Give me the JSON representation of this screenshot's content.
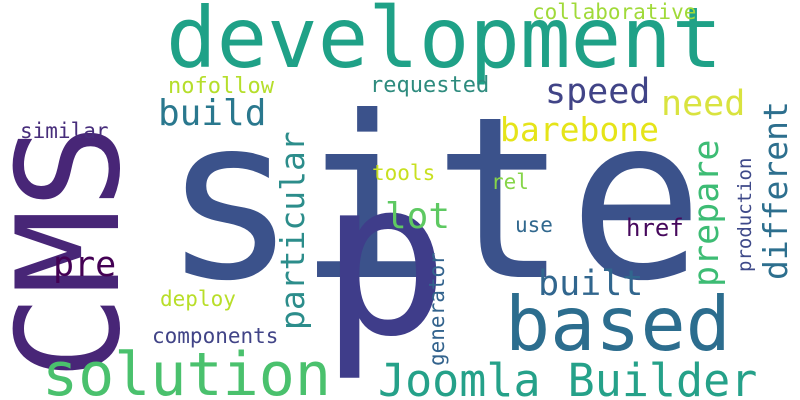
{
  "cloud": {
    "words": [
      {
        "text": "site",
        "color": "#3b528b"
      },
      {
        "text": "CMS",
        "color": "#482677"
      },
      {
        "text": "development",
        "color": "#1fa187"
      },
      {
        "text": "p",
        "color": "#3f3d8a"
      },
      {
        "text": "based",
        "color": "#2c6d8e"
      },
      {
        "text": "solution",
        "color": "#4ac16d"
      },
      {
        "text": "Joomla Builder",
        "color": "#25a189"
      },
      {
        "text": "build",
        "color": "#2a788e"
      },
      {
        "text": "speed",
        "color": "#414487"
      },
      {
        "text": "need",
        "color": "#d9e33f"
      },
      {
        "text": "barebone",
        "color": "#e5e419"
      },
      {
        "text": "particular",
        "color": "#2c8d8b"
      },
      {
        "text": "prepare",
        "color": "#3dbc74"
      },
      {
        "text": "different",
        "color": "#2d6f8e"
      },
      {
        "text": "lot",
        "color": "#5ec962"
      },
      {
        "text": "pre",
        "color": "#440154"
      },
      {
        "text": "built",
        "color": "#31668e"
      },
      {
        "text": "collaborative",
        "color": "#a0da39"
      },
      {
        "text": "nofollow",
        "color": "#b5de2b"
      },
      {
        "text": "requested",
        "color": "#2e8b7e"
      },
      {
        "text": "similar",
        "color": "#472d7b"
      },
      {
        "text": "tools",
        "color": "#c8e020"
      },
      {
        "text": "rel",
        "color": "#86d549"
      },
      {
        "text": "use",
        "color": "#31688e"
      },
      {
        "text": "href",
        "color": "#46085c"
      },
      {
        "text": "production",
        "color": "#3e4989"
      },
      {
        "text": "generator",
        "color": "#33638d"
      },
      {
        "text": "deploy",
        "color": "#b8de29"
      },
      {
        "text": "components",
        "color": "#414487"
      }
    ]
  }
}
